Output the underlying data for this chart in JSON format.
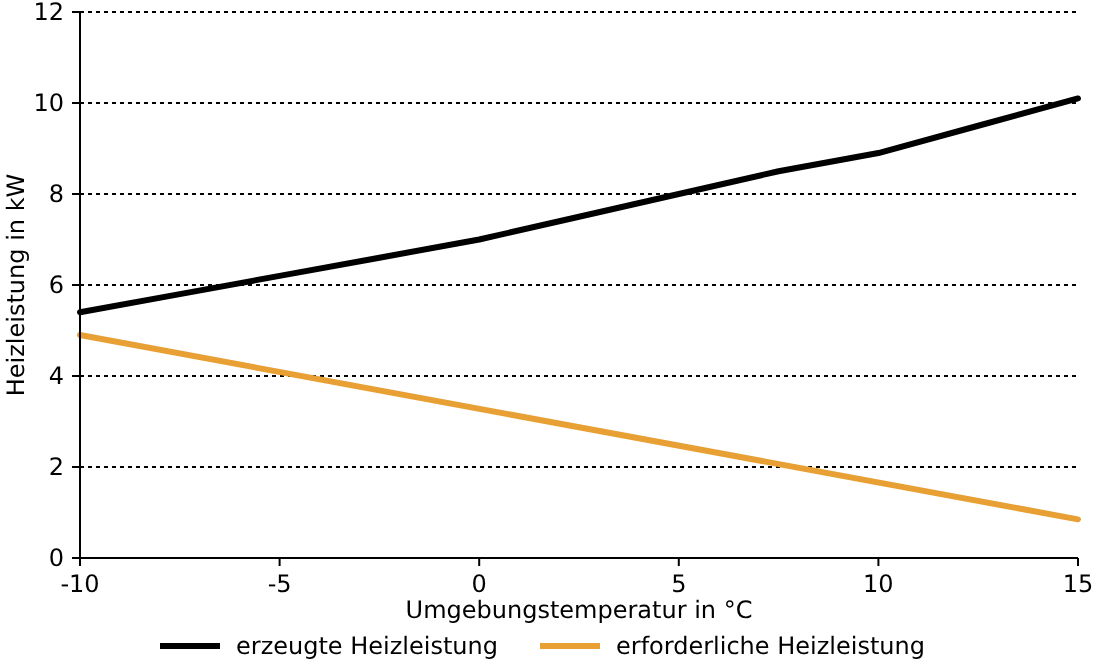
{
  "chart_data": {
    "type": "line",
    "xlabel": "Umgebungstemperatur in °C",
    "ylabel": "Heizleistung in kW",
    "xlim": [
      -10,
      15
    ],
    "xticks": [
      -10,
      -5,
      0,
      5,
      10,
      15
    ],
    "ylim": [
      0,
      12
    ],
    "yticks": [
      0,
      2,
      4,
      6,
      8,
      10,
      12
    ],
    "grid": "y",
    "legend": "bottom",
    "series": [
      {
        "name": "erzeugte Heizleistung",
        "color": "#000000",
        "x": [
          -10,
          -7.5,
          -5,
          -2.5,
          0,
          2.5,
          5,
          7.5,
          10,
          12.5,
          15
        ],
        "values": [
          5.4,
          5.8,
          6.2,
          6.6,
          7.0,
          7.5,
          8.0,
          8.5,
          8.9,
          9.5,
          10.1
        ]
      },
      {
        "name": "erforderliche Heizleistung",
        "color": "#e8a035",
        "x": [
          -10,
          15
        ],
        "values": [
          4.9,
          0.85
        ]
      }
    ]
  }
}
